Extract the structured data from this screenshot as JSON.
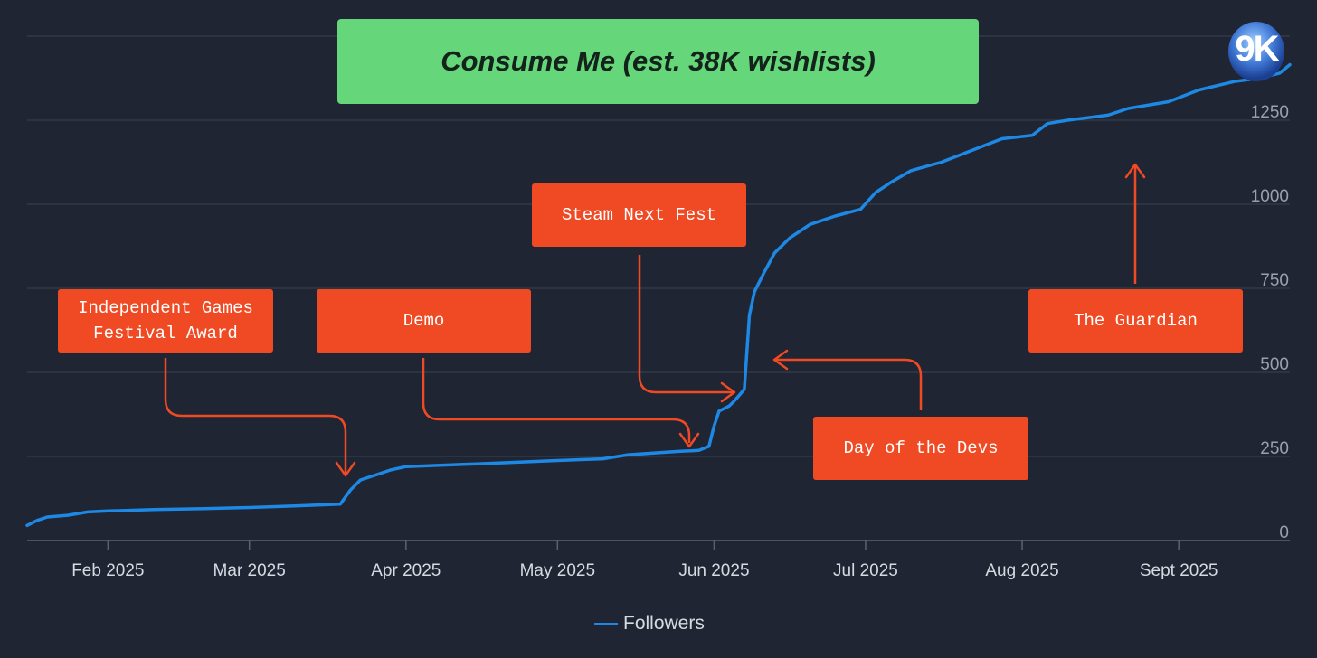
{
  "title": "Consume Me (est. 38K wishlists)",
  "logo": {
    "text": "9K",
    "icon": "9k-logo-icon"
  },
  "colors": {
    "background": "#1f2532",
    "line": "#1e88e5",
    "title_box": "#66d67a",
    "annotation": "#ef4a24",
    "grid": "#3a4150",
    "tick_text": "#d6dbe2",
    "ytick_text": "#9aa1ab"
  },
  "annotations": [
    {
      "id": "igf",
      "label": "Independent Games\nFestival Award",
      "points_to": "2025-03-20"
    },
    {
      "id": "demo",
      "label": "Demo",
      "points_to": "2025-05-29"
    },
    {
      "id": "nextfest",
      "label": "Steam Next Fest",
      "points_to": "2025-06-07"
    },
    {
      "id": "dayofdevs",
      "label": "Day of the Devs",
      "points_to": "2025-06-09"
    },
    {
      "id": "guardian",
      "label": "The Guardian",
      "points_to": "2025-08-20"
    }
  ],
  "legend": {
    "label": "Followers"
  },
  "chart_data": {
    "type": "line",
    "title": "Consume Me (est. 38K wishlists)",
    "xlabel": "",
    "ylabel": "",
    "grid": true,
    "y_axis_side": "right",
    "legend_position": "bottom",
    "xlim": [
      "2025-01-16",
      "2025-09-23"
    ],
    "ylim": [
      0,
      1500
    ],
    "x_ticks": [
      "2025-02-01",
      "2025-03-01",
      "2025-04-01",
      "2025-05-01",
      "2025-06-01",
      "2025-07-01",
      "2025-08-01",
      "2025-09-01"
    ],
    "x_tick_labels": [
      "Feb 2025",
      "Mar 2025",
      "Apr 2025",
      "May 2025",
      "Jun 2025",
      "Jul 2025",
      "Aug 2025",
      "Sept 2025"
    ],
    "y_ticks": [
      0,
      250,
      500,
      750,
      1000,
      1250
    ],
    "y_tick_labels": [
      "0",
      "250",
      "500",
      "750",
      "1000",
      "1250"
    ],
    "series": [
      {
        "name": "Followers",
        "x": [
          "2025-01-16",
          "2025-01-18",
          "2025-01-20",
          "2025-01-24",
          "2025-01-28",
          "2025-02-01",
          "2025-02-10",
          "2025-02-20",
          "2025-03-01",
          "2025-03-10",
          "2025-03-19",
          "2025-03-21",
          "2025-03-23",
          "2025-03-26",
          "2025-03-29",
          "2025-04-01",
          "2025-04-15",
          "2025-05-01",
          "2025-05-10",
          "2025-05-15",
          "2025-05-25",
          "2025-05-29",
          "2025-05-31",
          "2025-06-01",
          "2025-06-02",
          "2025-06-04",
          "2025-06-05",
          "2025-06-06",
          "2025-06-07",
          "2025-06-08",
          "2025-06-09",
          "2025-06-11",
          "2025-06-13",
          "2025-06-16",
          "2025-06-20",
          "2025-06-25",
          "2025-06-30",
          "2025-07-03",
          "2025-07-06",
          "2025-07-10",
          "2025-07-16",
          "2025-07-22",
          "2025-07-28",
          "2025-08-03",
          "2025-08-06",
          "2025-08-10",
          "2025-08-18",
          "2025-08-22",
          "2025-08-30",
          "2025-09-05",
          "2025-09-12",
          "2025-09-17",
          "2025-09-21",
          "2025-09-23"
        ],
        "y": [
          45,
          60,
          70,
          75,
          85,
          88,
          92,
          95,
          98,
          103,
          108,
          150,
          180,
          195,
          210,
          220,
          228,
          238,
          243,
          255,
          265,
          268,
          280,
          340,
          385,
          400,
          415,
          432,
          450,
          670,
          740,
          800,
          855,
          900,
          940,
          965,
          985,
          1035,
          1065,
          1100,
          1125,
          1160,
          1195,
          1205,
          1240,
          1250,
          1265,
          1285,
          1305,
          1340,
          1365,
          1375,
          1390,
          1415
        ]
      }
    ]
  }
}
